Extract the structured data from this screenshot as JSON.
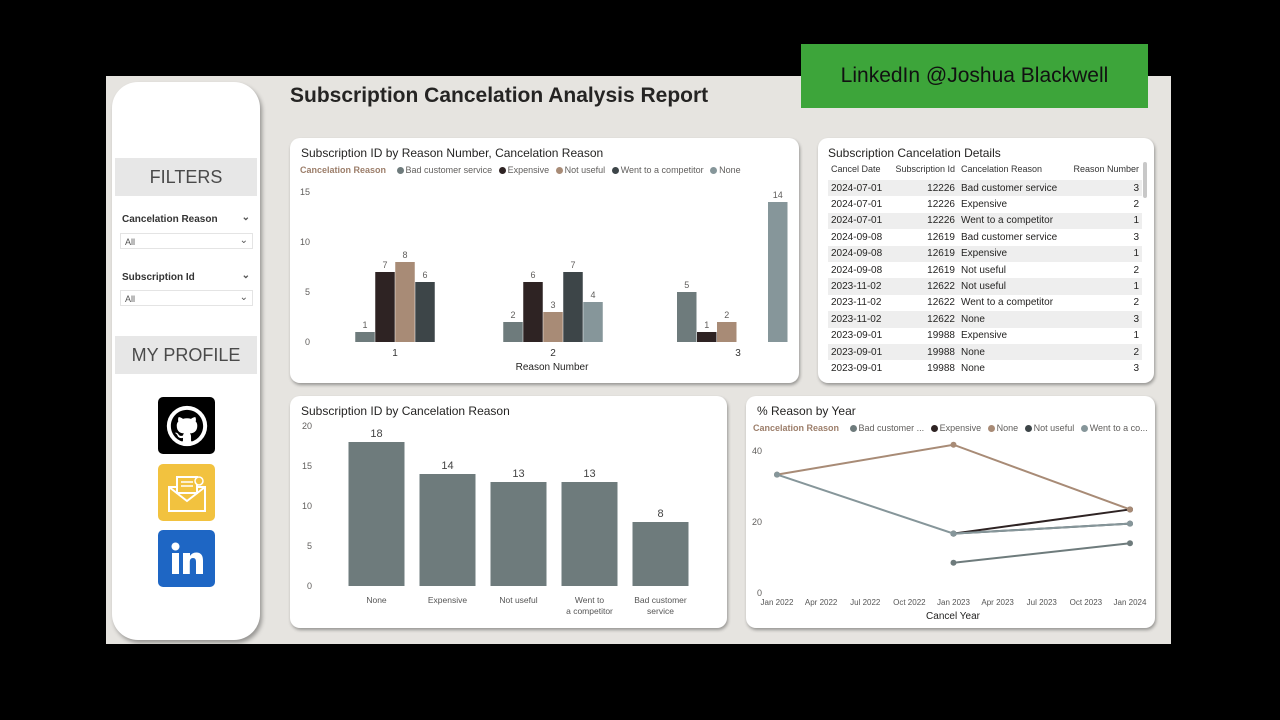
{
  "banner": "LinkedIn @Joshua Blackwell",
  "title": "Subscription Cancelation Analysis Report",
  "sidebar": {
    "filters_heading": "FILTERS",
    "slicers": [
      {
        "label": "Cancelation Reason",
        "value": "All"
      },
      {
        "label": "Subscription Id",
        "value": "All"
      }
    ],
    "profile_heading": "MY PROFILE",
    "icons": [
      "github-icon",
      "email-icon",
      "linkedin-icon"
    ]
  },
  "colors": {
    "bad_customer_service": "#6e7b7c",
    "expensive": "#2e2323",
    "not_useful": "#a88b76",
    "went_to_competitor": "#3d4548",
    "none": "#86969a",
    "bar_single": "#6e7b7c",
    "banner": "#3da53a"
  },
  "chart1": {
    "title": "Subscription ID by Reason Number, Cancelation Reason",
    "legend_title": "Cancelation Reason",
    "legend": [
      "Bad customer service",
      "Expensive",
      "Not useful",
      "Went to a competitor",
      "None"
    ]
  },
  "chart2": {
    "title": "Subscription ID by Cancelation Reason"
  },
  "chart3": {
    "title": "% Reason by Year",
    "legend_title": "Cancelation Reason",
    "legend": [
      "Bad customer ...",
      "Expensive",
      "None",
      "Not useful",
      "Went to a co..."
    ]
  },
  "table": {
    "title": "Subscription Cancelation Details",
    "columns": [
      "Cancel Date",
      "Subscription Id",
      "Cancelation Reason",
      "Reason Number"
    ],
    "rows": [
      [
        "2024-07-01",
        "12226",
        "Bad customer service",
        "3"
      ],
      [
        "2024-07-01",
        "12226",
        "Expensive",
        "2"
      ],
      [
        "2024-07-01",
        "12226",
        "Went to a competitor",
        "1"
      ],
      [
        "2024-09-08",
        "12619",
        "Bad customer service",
        "3"
      ],
      [
        "2024-09-08",
        "12619",
        "Expensive",
        "1"
      ],
      [
        "2024-09-08",
        "12619",
        "Not useful",
        "2"
      ],
      [
        "2023-11-02",
        "12622",
        "Not useful",
        "1"
      ],
      [
        "2023-11-02",
        "12622",
        "Went to a competitor",
        "2"
      ],
      [
        "2023-11-02",
        "12622",
        "None",
        "3"
      ],
      [
        "2023-09-01",
        "19988",
        "Expensive",
        "1"
      ],
      [
        "2023-09-01",
        "19988",
        "None",
        "2"
      ],
      [
        "2023-09-01",
        "19988",
        "None",
        "3"
      ]
    ]
  },
  "chart_data": [
    {
      "type": "bar",
      "title": "Subscription ID by Reason Number, Cancelation Reason",
      "xlabel": "Reason Number",
      "ylabel": "",
      "categories": [
        "1",
        "2",
        "3"
      ],
      "ylim": [
        0,
        15
      ],
      "yticks": [
        0,
        5,
        10,
        15
      ],
      "series": [
        {
          "name": "Bad customer service",
          "values": [
            1,
            2,
            5
          ]
        },
        {
          "name": "Expensive",
          "values": [
            7,
            6,
            1
          ]
        },
        {
          "name": "Not useful",
          "values": [
            8,
            3,
            2
          ]
        },
        {
          "name": "Went to a competitor",
          "values": [
            6,
            7,
            null
          ]
        },
        {
          "name": "None",
          "values": [
            null,
            4,
            14
          ]
        }
      ],
      "legend_position": "top-left"
    },
    {
      "type": "bar",
      "title": "Subscription ID by Cancelation Reason",
      "categories": [
        "None",
        "Expensive",
        "Not useful",
        "Went to a competitor",
        "Bad customer service"
      ],
      "values": [
        18,
        14,
        13,
        13,
        8
      ],
      "ylim": [
        0,
        20
      ],
      "yticks": [
        0,
        5,
        10,
        15,
        20
      ]
    },
    {
      "type": "line",
      "title": "% Reason by Year",
      "xlabel": "Cancel Year",
      "x_ticks": [
        "Jan 2022",
        "Apr 2022",
        "Jul 2022",
        "Oct 2022",
        "Jan 2023",
        "Apr 2023",
        "Jul 2023",
        "Oct 2023",
        "Jan 2024"
      ],
      "ylim": [
        0,
        45
      ],
      "yticks": [
        0,
        20,
        40
      ],
      "series": [
        {
          "name": "Bad customer service",
          "x": [
            "Jan 2023",
            "Jan 2024"
          ],
          "y": [
            8.5,
            14
          ]
        },
        {
          "name": "Expensive",
          "x": [
            "Jan 2023",
            "Jan 2024"
          ],
          "y": [
            16.7,
            23.5
          ]
        },
        {
          "name": "None",
          "x": [
            "Jan 2022",
            "Jan 2023",
            "Jan 2024"
          ],
          "y": [
            33.3,
            41.7,
            23.5
          ]
        },
        {
          "name": "Not useful",
          "x": [
            "Jan 2023",
            "Jan 2024"
          ],
          "y": [
            16.7,
            19.5
          ]
        },
        {
          "name": "Went to a competitor",
          "x": [
            "Jan 2022",
            "Jan 2023",
            "Jan 2024"
          ],
          "y": [
            33.3,
            16.7,
            19.5
          ]
        }
      ],
      "legend_position": "top-left"
    }
  ]
}
